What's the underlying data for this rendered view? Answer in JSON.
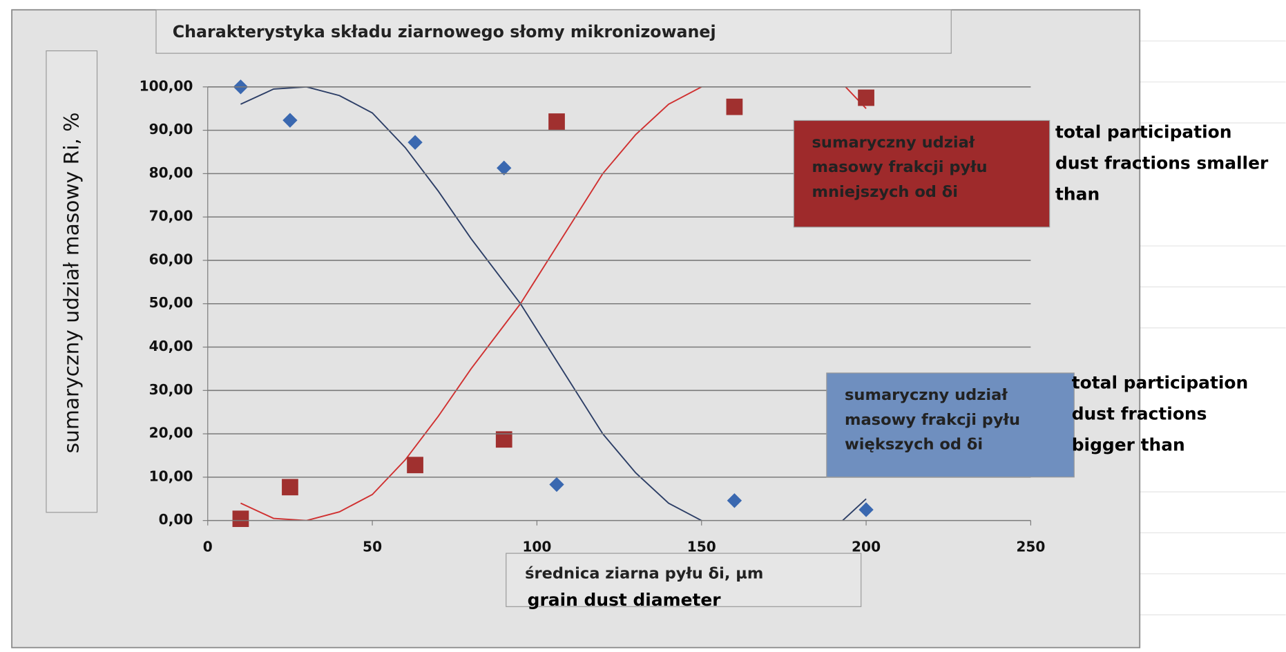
{
  "chart_data": {
    "type": "scatter",
    "title": "Charakterystyka składu ziarnowego słomy mikronizowanej",
    "ylabel": "sumaryczny udział masowy Ri, %",
    "xlabel": "średnica ziarna pyłu δi, µm",
    "xlabel_translation": "grain dust diameter",
    "xlim": [
      0,
      250
    ],
    "xticks": [
      0,
      50,
      100,
      150,
      200,
      250
    ],
    "ylim": [
      0,
      100
    ],
    "yticks": [
      {
        "value": 0,
        "label": "0,00"
      },
      {
        "value": 10,
        "label": "10,00"
      },
      {
        "value": 20,
        "label": "20,00"
      },
      {
        "value": 30,
        "label": "30,00"
      },
      {
        "value": 40,
        "label": "40,00"
      },
      {
        "value": 50,
        "label": "50,00"
      },
      {
        "value": 60,
        "label": "60,00"
      },
      {
        "value": 70,
        "label": "70,00"
      },
      {
        "value": 80,
        "label": "80,00"
      },
      {
        "value": 90,
        "label": "90,00"
      },
      {
        "value": 100,
        "label": "100,00"
      }
    ],
    "grid": true,
    "series": [
      {
        "name": "sumaryczny udział masowy frakcji pyłu mniejszych od δi",
        "color": "#a0302f",
        "legend_color": "#9e2a2b",
        "marker": "square",
        "x": [
          10,
          25,
          63,
          90,
          106,
          160,
          200
        ],
        "values": [
          0.4,
          7.7,
          12.8,
          18.7,
          92,
          95.4,
          97.5
        ],
        "trendline": {
          "color": "#d03030",
          "x": [
            10,
            20,
            30,
            40,
            50,
            60,
            70,
            80,
            90,
            95,
            100,
            110,
            120,
            130,
            140,
            150,
            160,
            170,
            180,
            190,
            200
          ],
          "values": [
            4,
            0.5,
            0,
            2,
            6,
            14,
            24,
            35,
            45,
            50,
            56,
            68,
            80,
            89,
            96,
            100,
            103,
            105,
            105,
            103,
            95
          ]
        },
        "annotation": [
          "total participation",
          "dust fractions smaller",
          "than"
        ]
      },
      {
        "name": "sumaryczny udział masowy frakcji pyłu większych od δi",
        "color": "#3a68b0",
        "legend_color": "#6f8fbf",
        "marker": "diamond",
        "x": [
          10,
          25,
          63,
          90,
          106,
          160,
          200
        ],
        "values": [
          100,
          92.3,
          87.2,
          81.3,
          8.3,
          4.6,
          2.5
        ],
        "trendline": {
          "color": "#2c3e66",
          "x": [
            10,
            20,
            30,
            40,
            50,
            60,
            70,
            80,
            90,
            95,
            100,
            110,
            120,
            130,
            140,
            150,
            160,
            170,
            180,
            190,
            200
          ],
          "values": [
            96,
            99.5,
            100,
            98,
            94,
            86,
            76,
            65,
            55,
            50,
            44,
            32,
            20,
            11,
            4,
            0,
            -3,
            -5,
            -5,
            -2,
            5
          ]
        },
        "annotation": [
          "total participation",
          "dust fractions",
          "bigger than"
        ]
      }
    ]
  }
}
